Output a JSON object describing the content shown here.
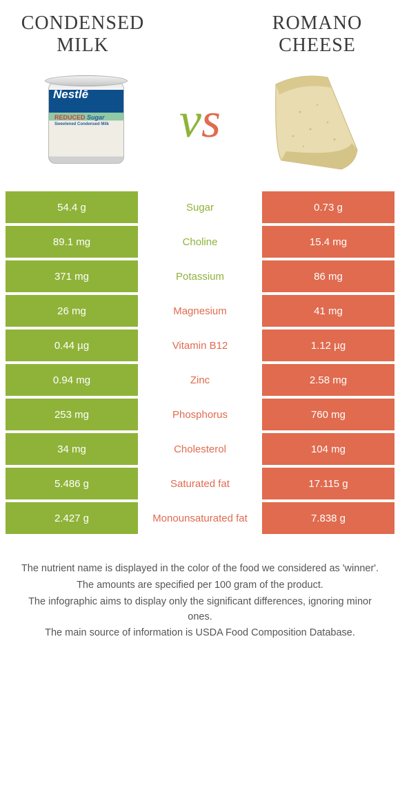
{
  "colors": {
    "left": "#8fb339",
    "right": "#e06b4f",
    "mid_bg": "#ffffff"
  },
  "header": {
    "left_title": "Condensed milk",
    "right_title": "Romano cheese",
    "vs": "vs"
  },
  "images": {
    "left_alt": "condensed-milk-can",
    "right_alt": "romano-cheese-wedge",
    "can_brand": "Nestlē",
    "can_line1": "REDUCED",
    "can_line2": "Sugar",
    "can_line3": "Sweetened Condensed Milk"
  },
  "rows": [
    {
      "left": "54.4 g",
      "label": "Sugar",
      "right": "0.73 g",
      "winner": "left"
    },
    {
      "left": "89.1 mg",
      "label": "Choline",
      "right": "15.4 mg",
      "winner": "left"
    },
    {
      "left": "371 mg",
      "label": "Potassium",
      "right": "86 mg",
      "winner": "left"
    },
    {
      "left": "26 mg",
      "label": "Magnesium",
      "right": "41 mg",
      "winner": "right"
    },
    {
      "left": "0.44 µg",
      "label": "Vitamin B12",
      "right": "1.12 µg",
      "winner": "right"
    },
    {
      "left": "0.94 mg",
      "label": "Zinc",
      "right": "2.58 mg",
      "winner": "right"
    },
    {
      "left": "253 mg",
      "label": "Phosphorus",
      "right": "760 mg",
      "winner": "right"
    },
    {
      "left": "34 mg",
      "label": "Cholesterol",
      "right": "104 mg",
      "winner": "right"
    },
    {
      "left": "5.486 g",
      "label": "Saturated fat",
      "right": "17.115 g",
      "winner": "right"
    },
    {
      "left": "2.427 g",
      "label": "Monounsaturated fat",
      "right": "7.838 g",
      "winner": "right"
    }
  ],
  "footer": [
    "The nutrient name is displayed in the color of the food we considered as 'winner'.",
    "The amounts are specified per 100 gram of the product.",
    "The infographic aims to display only the significant differences, ignoring minor ones.",
    "The main source of information is USDA Food Composition Database."
  ]
}
